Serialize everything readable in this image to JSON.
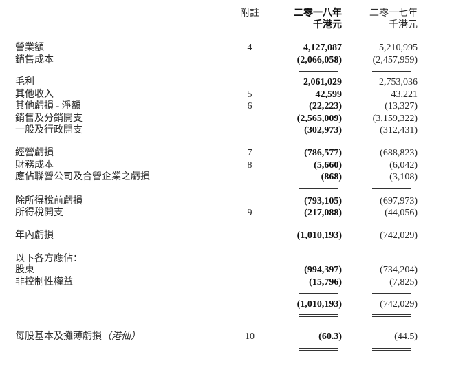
{
  "header": {
    "note_label": "附註",
    "year_current": "二零一八年",
    "year_prior": "二零一七年",
    "unit_current": "千港元",
    "unit_prior": "千港元"
  },
  "rows": [
    {
      "label": "營業額",
      "note": "4",
      "current": "4,127,087",
      "prior": "5,210,995"
    },
    {
      "label": "銷售成本",
      "note": "",
      "current": "(2,066,058)",
      "prior": "(2,457,959)"
    },
    {
      "rule": "single"
    },
    {
      "label": "毛利",
      "note": "",
      "current": "2,061,029",
      "prior": "2,753,036"
    },
    {
      "label": "其他收入",
      "note": "5",
      "current": "42,599",
      "prior": "43,221"
    },
    {
      "label": "其他虧損 - 淨額",
      "note": "6",
      "current": "(22,223)",
      "prior": "(13,327)"
    },
    {
      "label": "銷售及分銷開支",
      "note": "",
      "current": "(2,565,009)",
      "prior": "(3,159,322)"
    },
    {
      "label": "一般及行政開支",
      "note": "",
      "current": "(302,973)",
      "prior": "(312,431)"
    },
    {
      "rule": "single"
    },
    {
      "label": "經營虧損",
      "note": "7",
      "current": "(786,577)",
      "prior": "(688,823)"
    },
    {
      "label": "財務成本",
      "note": "8",
      "current": "(5,660)",
      "prior": "(6,042)"
    },
    {
      "label": "應佔聯營公司及合營企業之虧損",
      "note": "",
      "current": "(868)",
      "prior": "(3,108)"
    },
    {
      "rule": "single"
    },
    {
      "label": "除所得稅前虧損",
      "note": "",
      "current": "(793,105)",
      "prior": "(697,973)"
    },
    {
      "label": "所得稅開支",
      "note": "9",
      "current": "(217,088)",
      "prior": "(44,056)"
    },
    {
      "rule": "single"
    },
    {
      "label": "年內虧損",
      "note": "",
      "current": "(1,010,193)",
      "prior": "(742,029)"
    },
    {
      "rule": "double"
    },
    {
      "label": "以下各方應佔：",
      "note": "",
      "current": "",
      "prior": ""
    },
    {
      "label": " 股東",
      "note": "",
      "current": "(994,397)",
      "prior": "(734,204)"
    },
    {
      "label": " 非控制性權益",
      "note": "",
      "current": "(15,796)",
      "prior": "(7,825)"
    },
    {
      "rule": "single"
    },
    {
      "label": "",
      "note": "",
      "current": "(1,010,193)",
      "prior": "(742,029)"
    },
    {
      "rule": "double"
    },
    {
      "label": "每股基本及攤薄虧損",
      "label_suffix": "（港仙）",
      "note": "10",
      "current": "(60.3)",
      "prior": "(44.5)"
    },
    {
      "rule": "double"
    }
  ]
}
